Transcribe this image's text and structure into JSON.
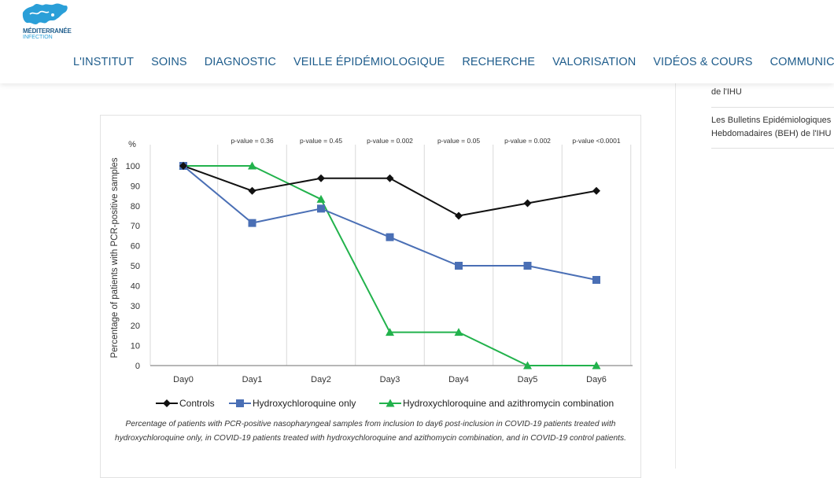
{
  "header": {
    "logo": {
      "line1": "MÉDITERRANÉE",
      "line2": "INFECTION",
      "color": "#2a9fd8"
    },
    "nav": [
      {
        "label": "L'INSTITUT"
      },
      {
        "label": "SOINS"
      },
      {
        "label": "DIAGNOSTIC"
      },
      {
        "label": "VEILLE ÉPIDÉMIOLOGIQUE"
      },
      {
        "label": "RECHERCHE"
      },
      {
        "label": "VALORISATION"
      },
      {
        "label": "VIDÉOS & COURS"
      },
      {
        "label": "COMMUNICATION"
      }
    ],
    "nav_color": "#1f5d8c"
  },
  "sidebar": {
    "items": [
      {
        "label": "de l'IHU"
      },
      {
        "label": "Les Bulletins Epidémiologiques Hebdomadaires (BEH) de l'IHU"
      }
    ]
  },
  "figure": {
    "caption": "Percentage of patients with PCR-positive nasopharyngeal samples from inclusion to day6 post-inclusion in COVID-19 patients treated with hydroxychloroquine only, in COVID-19 patients treated with hydroxychloroquine and azithomycin combination, and in COVID-19 control patients."
  },
  "chart_data": {
    "type": "line",
    "y_unit_label": "%",
    "ylabel": "Percentage of patients with PCR-positive samples",
    "xlabel": "",
    "ylim": [
      0,
      100
    ],
    "yticks": [
      0,
      10,
      20,
      30,
      40,
      50,
      60,
      70,
      80,
      90,
      100
    ],
    "categories": [
      "Day0",
      "Day1",
      "Day2",
      "Day3",
      "Day4",
      "Day5",
      "Day6"
    ],
    "pvalues": [
      "p-value = 0.36",
      "p-value = 0.45",
      "p-value = 0.002",
      "p-value = 0.05",
      "p-value = 0.002",
      "p-value <0.0001"
    ],
    "series": [
      {
        "name": "Controls",
        "color": "#111111",
        "marker": "diamond",
        "values": [
          100,
          87.5,
          93.8,
          93.8,
          75,
          81.3,
          87.5
        ]
      },
      {
        "name": "Hydroxychloroquine only",
        "color": "#4a6fb5",
        "marker": "square",
        "values": [
          100,
          71.4,
          78.6,
          64.3,
          50,
          50,
          42.9
        ]
      },
      {
        "name": "Hydroxychloroquine and azithromycin combination",
        "color": "#22b24c",
        "marker": "triangle",
        "values": [
          100,
          100,
          83.3,
          16.7,
          16.7,
          0,
          0
        ]
      }
    ],
    "legend_position": "bottom",
    "grid": "vertical"
  }
}
